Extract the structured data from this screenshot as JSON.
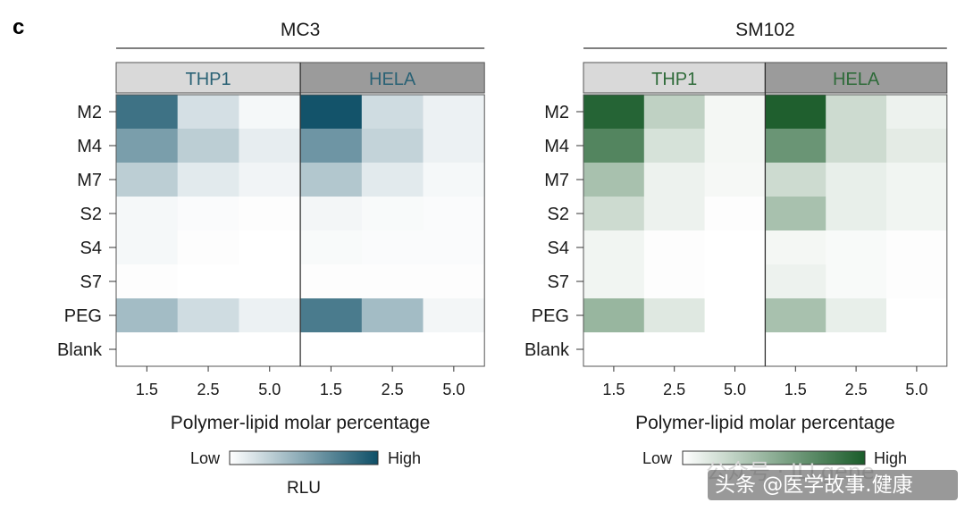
{
  "panel_letter": "c",
  "watermark_faint": "公众号 · ILLgene",
  "watermark": "头条 @医学故事.健康",
  "colors": {
    "mc3_high": "#0e4f67",
    "sm102_high": "#1a5c2a",
    "header_light": "#d9d9d9",
    "header_dark": "#9b9b9b",
    "mc3_header_text": "#2a6275",
    "sm102_header_text": "#2f6b3a"
  },
  "chart_data": [
    {
      "type": "heatmap",
      "title": "MC3",
      "color_high": "#0e4f67",
      "xlabel": "Polymer-lipid molar percentage",
      "rows": [
        "M2",
        "M4",
        "M7",
        "S2",
        "S4",
        "S7",
        "PEG",
        "Blank"
      ],
      "cell_lines": [
        "THP1",
        "HELA"
      ],
      "x_ticks": [
        "1.5",
        "2.5",
        "5.0"
      ],
      "values": {
        "THP1": [
          [
            0.8,
            0.18,
            0.04
          ],
          [
            0.55,
            0.28,
            0.1
          ],
          [
            0.28,
            0.12,
            0.06
          ],
          [
            0.04,
            0.02,
            0.01
          ],
          [
            0.04,
            0.01,
            0.0
          ],
          [
            0.01,
            0.0,
            0.0
          ],
          [
            0.38,
            0.2,
            0.08
          ],
          [
            0.0,
            0.0,
            0.0
          ]
        ],
        "HELA": [
          [
            0.98,
            0.2,
            0.08
          ],
          [
            0.6,
            0.25,
            0.08
          ],
          [
            0.32,
            0.12,
            0.04
          ],
          [
            0.05,
            0.03,
            0.02
          ],
          [
            0.03,
            0.02,
            0.02
          ],
          [
            0.01,
            0.01,
            0.01
          ],
          [
            0.75,
            0.38,
            0.05
          ],
          [
            0.0,
            0.0,
            0.0
          ]
        ]
      },
      "colorbar": {
        "low_label": "Low",
        "high_label": "High",
        "label": "RLU"
      }
    },
    {
      "type": "heatmap",
      "title": "SM102",
      "color_high": "#1a5c2a",
      "xlabel": "Polymer-lipid molar percentage",
      "rows": [
        "M2",
        "M4",
        "M7",
        "S2",
        "S4",
        "S7",
        "PEG",
        "Blank"
      ],
      "cell_lines": [
        "THP1",
        "HELA"
      ],
      "x_ticks": [
        "1.5",
        "2.5",
        "5.0"
      ],
      "values": {
        "THP1": [
          [
            0.95,
            0.28,
            0.05
          ],
          [
            0.75,
            0.18,
            0.05
          ],
          [
            0.38,
            0.08,
            0.04
          ],
          [
            0.22,
            0.08,
            0.01
          ],
          [
            0.06,
            0.01,
            0.0
          ],
          [
            0.06,
            0.01,
            0.0
          ],
          [
            0.45,
            0.14,
            0.0
          ],
          [
            0.0,
            0.0,
            0.0
          ]
        ],
        "HELA": [
          [
            0.98,
            0.22,
            0.08
          ],
          [
            0.65,
            0.22,
            0.12
          ],
          [
            0.22,
            0.1,
            0.06
          ],
          [
            0.38,
            0.1,
            0.06
          ],
          [
            0.05,
            0.03,
            0.01
          ],
          [
            0.08,
            0.03,
            0.01
          ],
          [
            0.38,
            0.1,
            0.0
          ],
          [
            0.0,
            0.0,
            0.0
          ]
        ]
      },
      "colorbar": {
        "low_label": "Low",
        "high_label": "High"
      }
    }
  ]
}
